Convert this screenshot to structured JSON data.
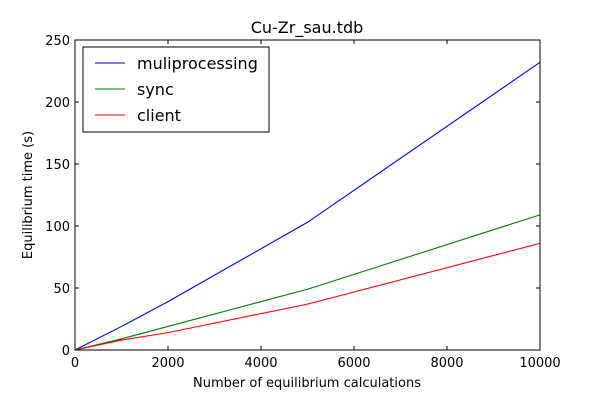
{
  "chart_data": {
    "type": "line",
    "title": "Cu-Zr_sau.tdb",
    "xlabel": "Number of equilibrium calculations",
    "ylabel": "Equilibrium time (s)",
    "xlim": [
      0,
      10000
    ],
    "ylim": [
      0,
      250
    ],
    "xticks": [
      0,
      2000,
      4000,
      6000,
      8000,
      10000
    ],
    "yticks": [
      0,
      50,
      100,
      150,
      200,
      250
    ],
    "grid": false,
    "legend_position": "top-left",
    "series": [
      {
        "name": "muliprocessing",
        "color": "#0000ff",
        "x": [
          0,
          1000,
          2000,
          5000,
          10000
        ],
        "y": [
          0,
          19,
          39,
          103,
          232
        ]
      },
      {
        "name": "sync",
        "color": "#008000",
        "x": [
          0,
          1000,
          2000,
          5000,
          10000
        ],
        "y": [
          0,
          9,
          19,
          49,
          109
        ]
      },
      {
        "name": "client",
        "color": "#ff0000",
        "x": [
          0,
          1000,
          2000,
          5000,
          10000
        ],
        "y": [
          0,
          8,
          14,
          37,
          86
        ]
      }
    ]
  }
}
